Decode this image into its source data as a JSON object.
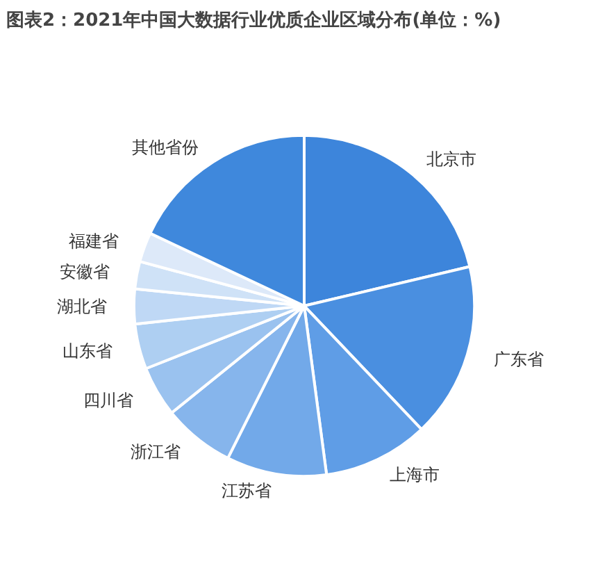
{
  "chart_data": {
    "type": "pie",
    "title": "图表2：2021年中国大数据行业优质企业区域分布(单位：%)",
    "categories": [
      "北京市",
      "广东省",
      "上海市",
      "江苏省",
      "浙江省",
      "四川省",
      "山东省",
      "湖北省",
      "安徽省",
      "福建省",
      "其他省份"
    ],
    "values": [
      21.3,
      16.6,
      10.0,
      9.5,
      6.8,
      4.8,
      4.3,
      3.3,
      2.6,
      2.8,
      18.0
    ],
    "colors": [
      "#3d85db",
      "#4a8fe0",
      "#5f9de6",
      "#72a9e9",
      "#86b5ec",
      "#9ac2ef",
      "#aecff2",
      "#bfd8f5",
      "#cfe2f7",
      "#dde9f9",
      "#3f88dc"
    ],
    "legend": false
  }
}
